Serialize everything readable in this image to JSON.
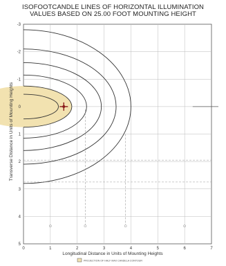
{
  "chart_data": {
    "type": "contour",
    "title": "ISOFOOTCANDLE LINES OF HORIZONTAL ILLUMINATION",
    "subtitle": "VALUES BASED ON 25.00 FOOT MOUNTING HEIGHT",
    "xlabel": "Longitudinal Distance in Units of Mounting Heights",
    "ylabel": "Transverse Distance in Units of Mounting Heights",
    "xlim": [
      0,
      7
    ],
    "ylim": [
      -3,
      5
    ],
    "x_ticks": [
      "0",
      "1",
      "2",
      "3",
      "4",
      "5",
      "6",
      "7"
    ],
    "y_ticks": [
      "-3",
      "-2",
      "-1",
      "0",
      "1",
      "2",
      "3",
      "4",
      "5"
    ],
    "grid": true,
    "fixture_position": [
      1.5,
      0
    ],
    "half_max_candela_contour_fill": "#f2e2b0",
    "contour_color": "#333333",
    "contours": [
      {
        "x_left": 0.0,
        "x_right": 1.3,
        "half_height": 0.45
      },
      {
        "x_left": 0.0,
        "x_right": 1.8,
        "half_height": 0.75
      },
      {
        "x_left": 0.0,
        "x_right": 2.35,
        "half_height": 1.15
      },
      {
        "x_left": 0.0,
        "x_right": 2.9,
        "half_height": 1.6
      },
      {
        "x_left": 0.0,
        "x_right": 3.45,
        "half_height": 2.1
      },
      {
        "x_left": 0.0,
        "x_right": 4.0,
        "half_height": 2.8
      }
    ],
    "legend": [
      "PROJECTION OF HALF MAX CANDELA CONTOUR"
    ],
    "legend_placement": "bottom-center"
  }
}
